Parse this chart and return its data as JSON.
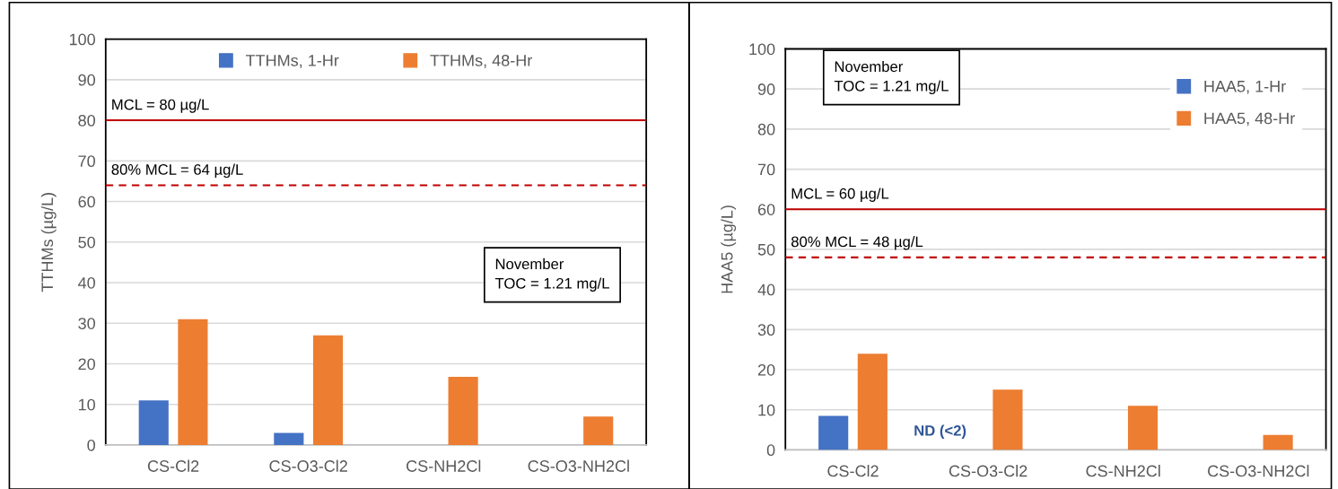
{
  "chart_data": [
    {
      "type": "bar",
      "ylabel": "TTHMs (µg/L)",
      "categories": [
        "CS-Cl2",
        "CS-O3-Cl2",
        "CS-NH2Cl",
        "CS-O3-NH2Cl"
      ],
      "series": [
        {
          "name": "TTHMs, 1-Hr",
          "color": "#4472c4",
          "values": [
            11,
            3,
            null,
            null
          ]
        },
        {
          "name": "TTHMs, 48-Hr",
          "color": "#ed7d31",
          "values": [
            31,
            27,
            16.8,
            7
          ]
        }
      ],
      "ylim": [
        0,
        100
      ],
      "yticks": [
        0,
        10,
        20,
        30,
        40,
        50,
        60,
        70,
        80,
        90,
        100
      ],
      "grid": "y",
      "legend": "top",
      "ref_lines": [
        {
          "axis": "y",
          "value": 80,
          "label": "MCL = 80 µg/L",
          "color": "#c00000",
          "line_style": "solid"
        },
        {
          "axis": "y",
          "value": 64,
          "label": "80% MCL = 64 µg/L",
          "color": "#c00000",
          "line_style": "dashed"
        }
      ],
      "annotations": [
        "November\nTOC = 1.21 mg/L"
      ]
    },
    {
      "type": "bar",
      "ylabel": "HAA5 (µg/L)",
      "categories": [
        "CS-Cl2",
        "CS-O3-Cl2",
        "CS-NH2Cl",
        "CS-O3-NH2Cl"
      ],
      "series": [
        {
          "name": "HAA5, 1-Hr",
          "color": "#4472c4",
          "values": [
            8.5,
            null,
            null,
            null
          ]
        },
        {
          "name": "HAA5, 48-Hr",
          "color": "#ed7d31",
          "values": [
            24,
            15,
            11,
            3.7
          ]
        }
      ],
      "ylim": [
        0,
        100
      ],
      "yticks": [
        0,
        10,
        20,
        30,
        40,
        50,
        60,
        70,
        80,
        90,
        100
      ],
      "grid": "y",
      "legend": "top right",
      "ref_lines": [
        {
          "axis": "y",
          "value": 60,
          "label": "MCL = 60 µg/L",
          "color": "#c00000",
          "line_style": "solid"
        },
        {
          "axis": "y",
          "value": 48,
          "label": "80% MCL = 48 µg/L",
          "color": "#c00000",
          "line_style": "dashed"
        }
      ],
      "annotations": [
        "November\nTOC = 1.21 mg/L",
        "ND (<2)"
      ]
    }
  ]
}
